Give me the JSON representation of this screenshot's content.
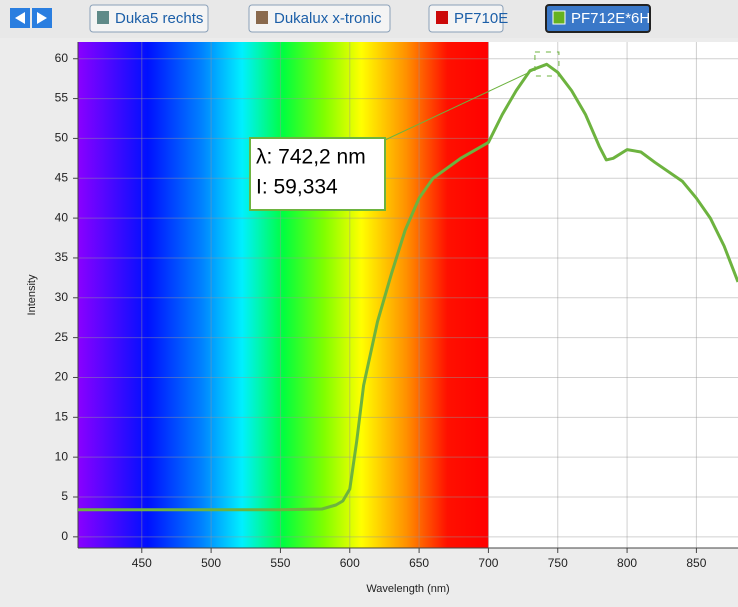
{
  "toolbar": {
    "buttons": [
      {
        "label": "Duka5 rechts",
        "color": "#5f8a88"
      },
      {
        "label": "Dukalux x-tronic",
        "color": "#8a6a4e"
      },
      {
        "label": "PF710E",
        "color": "#cc0a0a"
      },
      {
        "label": "PF712E*6H",
        "color": "#66b21f",
        "selected": true
      }
    ]
  },
  "chart_data": {
    "type": "line",
    "x_label": "Wavelength (nm)",
    "y_label": "Intensity",
    "x": [
      404,
      450,
      500,
      550,
      580,
      590,
      595,
      600,
      605,
      610,
      620,
      630,
      640,
      650,
      660,
      680,
      700,
      710,
      720,
      730,
      742,
      750,
      760,
      770,
      780,
      785,
      790,
      800,
      810,
      820,
      840,
      850,
      860,
      870,
      880
    ],
    "series": [
      {
        "name": "PF712E*6H",
        "color": "#6db33f",
        "values": [
          3.4,
          3.4,
          3.4,
          3.4,
          3.5,
          4,
          4.5,
          6,
          12,
          19,
          27,
          33,
          38.5,
          42.5,
          45,
          47.5,
          49.5,
          53,
          56,
          58.5,
          59.3,
          58.3,
          56,
          53,
          49,
          47.3,
          47.5,
          48.6,
          48.3,
          47,
          44.6,
          42.5,
          40,
          36.5,
          32
        ]
      }
    ],
    "xlim": [
      404,
      880
    ],
    "ylim": [
      -1.4,
      62.1
    ],
    "xticks": [
      450,
      500,
      550,
      600,
      650,
      700,
      750,
      800,
      850
    ],
    "yticks": [
      0,
      5,
      10,
      15,
      20,
      25,
      30,
      35,
      40,
      45,
      50,
      55,
      60
    ],
    "grid": true,
    "spectrum_end": 700,
    "tooltip": {
      "x": 742.2,
      "y": 59.334,
      "lines": [
        "λ: 742,2 nm",
        "I: 59,334"
      ]
    }
  }
}
